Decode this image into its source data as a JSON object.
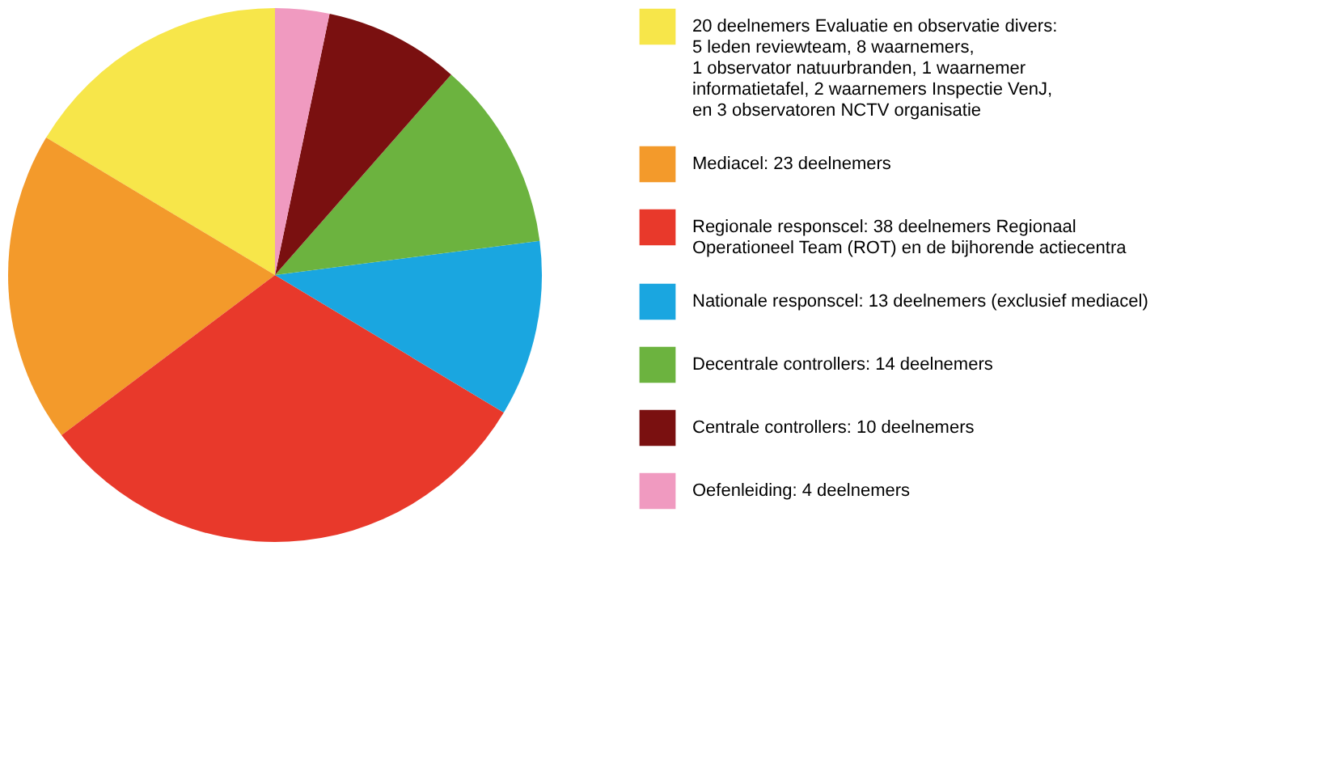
{
  "chart_data": {
    "type": "pie",
    "legend": "right",
    "categories": [
      "20 deelnemers Evaluatie en observatie divers:\n5 leden reviewteam, 8 waarnemers,\n1 observator natuurbranden, 1 waarnemer\ninformatietafel, 2 waarnemers Inspectie VenJ,\nen 3 observatoren NCTV organisatie",
      "Mediacel: 23 deelnemers",
      "Regionale responscel: 38 deelnemers Regionaal\nOperationeel Team (ROT) en de bijhorende actiecentra",
      "Nationale responscel: 13 deelnemers  (exclusief mediacel)",
      "Decentrale controllers: 14 deelnemers",
      "Centrale controllers: 10 deelnemers",
      "Oefenleiding: 4 deelnemers"
    ],
    "values": [
      20,
      23,
      38,
      13,
      14,
      10,
      4
    ],
    "colors": [
      "#f7e64a",
      "#f39a2b",
      "#e8392b",
      "#1aa6e0",
      "#6cb33f",
      "#7a1010",
      "#f09ac0"
    ]
  }
}
